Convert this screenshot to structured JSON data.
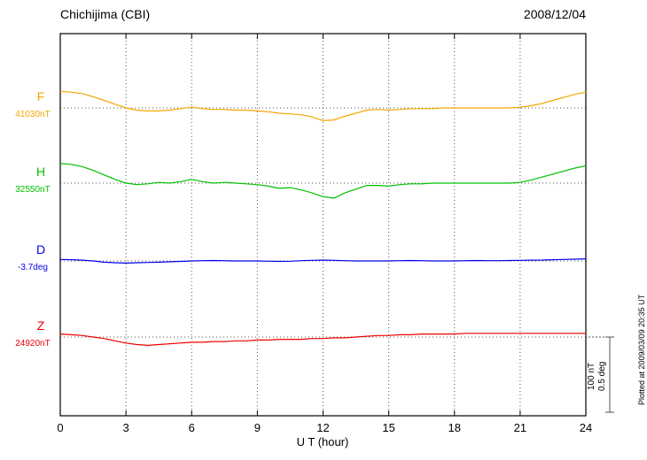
{
  "header": {
    "title": "Chichijima (CBI)",
    "date": "2008/12/04"
  },
  "axis": {
    "x_label": "U T (hour)",
    "x_ticks": [
      "0",
      "3",
      "6",
      "9",
      "12",
      "15",
      "18",
      "21",
      "24"
    ],
    "x_tick_values": [
      0,
      3,
      6,
      9,
      12,
      15,
      18,
      21,
      24
    ]
  },
  "scale_bar": {
    "nt_label": "100 nT",
    "deg_label": "0.5 deg",
    "nT_per_bar": 100,
    "deg_per_bar": 0.5
  },
  "plotted_note": "Plotted at 2009/03/09 20:35 UT",
  "chart_data": {
    "type": "line",
    "title": "Chichijima (CBI) magnetogram",
    "date": "2008/12/04",
    "xlabel": "U T (hour)",
    "x_range": [
      0,
      24
    ],
    "x_gridlines": [
      3,
      6,
      9,
      12,
      15,
      18,
      21
    ],
    "x": [
      0,
      0.5,
      1,
      1.5,
      2,
      2.5,
      3,
      3.5,
      4,
      4.5,
      5,
      5.5,
      6,
      6.5,
      7,
      7.5,
      8,
      8.5,
      9,
      9.5,
      10,
      10.5,
      11,
      11.5,
      12,
      12.5,
      13,
      13.5,
      14,
      14.5,
      15,
      15.5,
      16,
      16.5,
      17,
      17.5,
      18,
      18.5,
      19,
      19.5,
      20,
      20.5,
      21,
      21.5,
      22,
      22.5,
      23,
      23.5,
      24
    ],
    "series": [
      {
        "id": "F",
        "label": "F",
        "value_label": "41030nT",
        "base_value": 41030,
        "unit": "nT",
        "color": "#f5a500",
        "offsets": [
          22,
          21,
          19,
          15,
          10,
          5,
          0,
          -3,
          -4,
          -4,
          -3,
          -1,
          1,
          -1,
          -2,
          -2,
          -3,
          -3,
          -4,
          -5,
          -7,
          -8,
          -9,
          -12,
          -17,
          -16,
          -11,
          -7,
          -3,
          -2,
          -3,
          -2,
          -1,
          -1,
          -1,
          0,
          0,
          0,
          0,
          0,
          0,
          0,
          1,
          3,
          6,
          10,
          14,
          18,
          21
        ]
      },
      {
        "id": "H",
        "label": "H",
        "value_label": "32550nT",
        "base_value": 32550,
        "unit": "nT",
        "color": "#00c000",
        "offsets": [
          26,
          25,
          22,
          17,
          11,
          5,
          0,
          -2,
          -1,
          1,
          0,
          2,
          5,
          2,
          0,
          1,
          0,
          -1,
          -2,
          -4,
          -7,
          -6,
          -9,
          -13,
          -18,
          -20,
          -13,
          -8,
          -3,
          -3,
          -4,
          -2,
          -1,
          -1,
          0,
          0,
          0,
          0,
          0,
          0,
          0,
          0,
          1,
          4,
          8,
          12,
          16,
          20,
          23
        ]
      },
      {
        "id": "D",
        "label": "D",
        "value_label": "-3.7deg",
        "base_value": -3.7,
        "unit": "deg",
        "color": "#0000ee",
        "offsets": [
          0.01,
          0.008,
          0.005,
          0,
          -0.008,
          -0.012,
          -0.014,
          -0.012,
          -0.01,
          -0.008,
          -0.005,
          -0.003,
          0,
          0.002,
          0.003,
          0.002,
          0,
          0,
          0,
          -0.002,
          -0.003,
          -0.002,
          0.002,
          0.004,
          0.006,
          0.004,
          0.002,
          0,
          0,
          0,
          0,
          0.002,
          0.003,
          0.002,
          0,
          0,
          0,
          0.002,
          0.003,
          0.002,
          0.002,
          0.003,
          0.004,
          0.005,
          0.006,
          0.008,
          0.01,
          0.012,
          0.014
        ]
      },
      {
        "id": "Z",
        "label": "Z",
        "value_label": "24920nT",
        "base_value": 24920,
        "unit": "nT",
        "color": "#ee0000",
        "offsets": [
          4,
          3,
          2,
          0,
          -2,
          -5,
          -8,
          -10,
          -11,
          -10,
          -9,
          -8,
          -7,
          -7,
          -6,
          -6,
          -5,
          -5,
          -4,
          -4,
          -3,
          -3,
          -3,
          -2,
          -2,
          -1,
          -1,
          0,
          1,
          2,
          2,
          3,
          3,
          4,
          4,
          4,
          4,
          5,
          5,
          5,
          5,
          5,
          5,
          5,
          5,
          5,
          5,
          5,
          5
        ]
      }
    ]
  }
}
